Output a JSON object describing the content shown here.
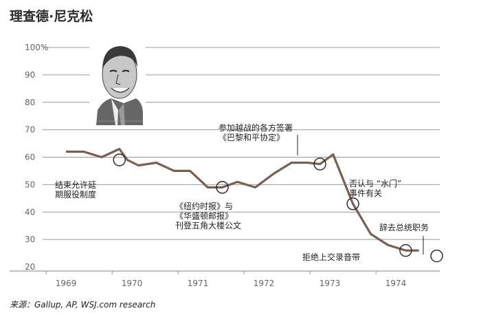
{
  "title": "理查德·尼克松",
  "source": "来源：Gallup, AP, WSJ.com research",
  "chart_data": {
    "type": "line",
    "ylim": [
      20,
      100
    ],
    "yticks": [
      "20",
      "30",
      "40",
      "50",
      "60",
      "70",
      "80",
      "90",
      "100%"
    ],
    "xticks": [
      "1969",
      "1970",
      "1971",
      "1972",
      "1973",
      "1974"
    ],
    "x": [
      1969.0,
      1969.27,
      1969.54,
      1969.81,
      1969.93,
      1970.1,
      1970.37,
      1970.64,
      1970.88,
      1971.15,
      1971.37,
      1971.6,
      1971.87,
      1972.15,
      1972.42,
      1972.66,
      1972.85,
      1973.05,
      1973.35,
      1973.62,
      1973.88,
      1974.15,
      1974.35
    ],
    "values": [
      62,
      62,
      60,
      63,
      59,
      57,
      58,
      55,
      55,
      49,
      49,
      51,
      49,
      54,
      58,
      58,
      57.5,
      61,
      43,
      32,
      28,
      26,
      26
    ],
    "annotations": [
      {
        "lines": [
          "结束允许延",
          "期服役制度"
        ],
        "x": 1969.81,
        "y": 59
      },
      {
        "lines": [
          "《纽约时报》与",
          "《华盛顿邮报》",
          "刊登五角大楼公文"
        ],
        "x": 1971.37,
        "y": 49
      },
      {
        "lines": [
          "参加越战的各方签署",
          "《巴黎和平协定》"
        ],
        "x": 1972.85,
        "y": 57.5
      },
      {
        "lines": [
          "否认与 “水门”",
          "事件有关"
        ],
        "x": 1973.35,
        "y": 43
      },
      {
        "lines": [
          "拒绝上交录音带"
        ],
        "x": 1974.15,
        "y": 26
      },
      {
        "lines": [
          "辞去总统职务"
        ],
        "x": 1974.62,
        "y": 24
      }
    ]
  }
}
